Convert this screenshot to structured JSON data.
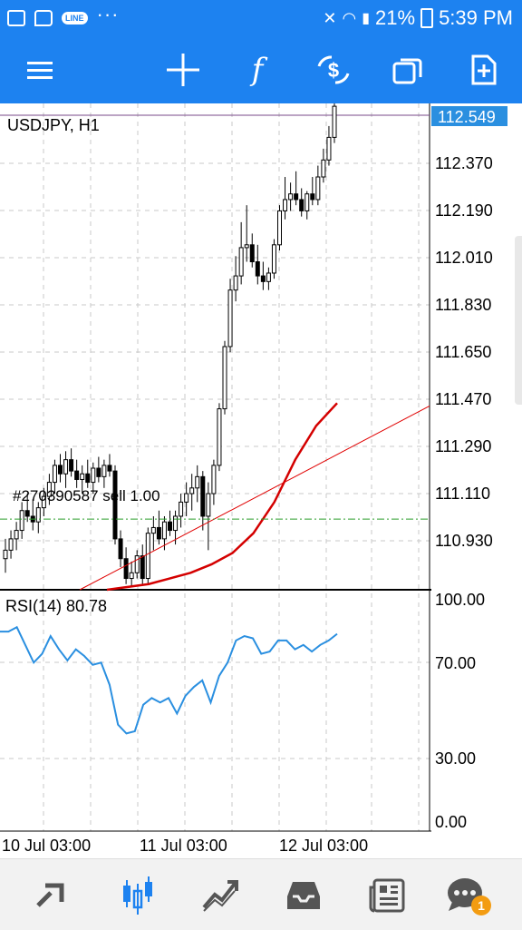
{
  "status_bar": {
    "notification_icons": [
      "gallery-icon",
      "chat-icon",
      "line-app-icon"
    ],
    "line_label": "LINE",
    "more_dots": "···",
    "battery": "21%",
    "time": "5:39 PM"
  },
  "toolbar": {
    "buttons": [
      "menu-icon",
      "crosshair-icon",
      "indicators-icon",
      "symbol-change-icon",
      "windows-icon",
      "new-order-icon"
    ],
    "indicator_glyph": "f",
    "color": "#1d82f0"
  },
  "chart": {
    "symbol_label": "USDJPY, H1",
    "current_price": "112.549",
    "order_label": "#270390587 sell 1.00",
    "rsi_label": "RSI(14) 80.78",
    "price_labels": [
      "112.370",
      "112.190",
      "112.010",
      "111.830",
      "111.650",
      "111.470",
      "111.290",
      "111.110",
      "110.930"
    ],
    "rsi_labels": [
      "100.00",
      "70.00",
      "30.00",
      "0.00"
    ],
    "time_labels": [
      "10 Jul 03:00",
      "11 Jul 03:00",
      "12 Jul 03:00"
    ],
    "colors": {
      "ma": "#d40000",
      "trendline": "#e00000",
      "rsi": "#2a8fe0",
      "order_line": "#2a9d2a",
      "price_tag": "#2a8fe0"
    }
  },
  "chart_data": {
    "type": "candlestick",
    "symbol": "USDJPY",
    "timeframe": "H1",
    "ylim": [
      110.84,
      112.56
    ],
    "last_price": 112.549,
    "order": {
      "ticket": "#270390587",
      "side": "sell",
      "volume": 1.0,
      "price": 111.09
    },
    "candles": [
      [
        110.95,
        111.02,
        110.9,
        110.98
      ],
      [
        110.98,
        111.05,
        110.95,
        111.02
      ],
      [
        111.02,
        111.08,
        110.98,
        111.05
      ],
      [
        111.05,
        111.15,
        111.02,
        111.12
      ],
      [
        111.12,
        111.18,
        111.08,
        111.1
      ],
      [
        111.1,
        111.16,
        111.05,
        111.08
      ],
      [
        111.08,
        111.15,
        111.04,
        111.13
      ],
      [
        111.13,
        111.2,
        111.1,
        111.17
      ],
      [
        111.17,
        111.25,
        111.14,
        111.22
      ],
      [
        111.22,
        111.3,
        111.18,
        111.28
      ],
      [
        111.28,
        111.32,
        111.22,
        111.25
      ],
      [
        111.25,
        111.33,
        111.2,
        111.3
      ],
      [
        111.3,
        111.34,
        111.24,
        111.26
      ],
      [
        111.26,
        111.3,
        111.2,
        111.23
      ],
      [
        111.23,
        111.28,
        111.18,
        111.25
      ],
      [
        111.25,
        111.3,
        111.2,
        111.22
      ],
      [
        111.22,
        111.29,
        111.18,
        111.27
      ],
      [
        111.27,
        111.31,
        111.22,
        111.24
      ],
      [
        111.24,
        111.3,
        111.2,
        111.28
      ],
      [
        111.28,
        111.32,
        111.24,
        111.26
      ],
      [
        111.26,
        111.28,
        111.0,
        111.02
      ],
      [
        111.02,
        111.05,
        110.92,
        110.95
      ],
      [
        110.95,
        110.99,
        110.86,
        110.88
      ],
      [
        110.88,
        110.94,
        110.85,
        110.9
      ],
      [
        110.9,
        110.98,
        110.88,
        110.96
      ],
      [
        110.96,
        111.0,
        110.86,
        110.88
      ],
      [
        110.88,
        111.06,
        110.86,
        111.04
      ],
      [
        111.04,
        111.1,
        110.98,
        111.06
      ],
      [
        111.06,
        111.12,
        111.0,
        111.02
      ],
      [
        111.02,
        111.1,
        110.98,
        111.08
      ],
      [
        111.08,
        111.12,
        111.03,
        111.05
      ],
      [
        111.05,
        111.12,
        111.0,
        111.1
      ],
      [
        111.1,
        111.18,
        111.06,
        111.15
      ],
      [
        111.15,
        111.22,
        111.1,
        111.18
      ],
      [
        111.18,
        111.25,
        111.12,
        111.2
      ],
      [
        111.2,
        111.28,
        111.15,
        111.24
      ],
      [
        111.24,
        111.26,
        111.05,
        111.1
      ],
      [
        111.1,
        111.22,
        110.98,
        111.18
      ],
      [
        111.18,
        111.3,
        111.14,
        111.28
      ],
      [
        111.28,
        111.5,
        111.26,
        111.48
      ],
      [
        111.48,
        111.72,
        111.46,
        111.7
      ],
      [
        111.7,
        111.94,
        111.68,
        111.9
      ],
      [
        111.9,
        112.02,
        111.86,
        111.95
      ],
      [
        111.95,
        112.14,
        111.92,
        112.05
      ],
      [
        112.05,
        112.2,
        112.0,
        112.06
      ],
      [
        112.06,
        112.1,
        111.98,
        112.0
      ],
      [
        112.0,
        112.06,
        111.92,
        111.95
      ],
      [
        111.95,
        112.0,
        111.9,
        111.93
      ],
      [
        111.93,
        111.98,
        111.9,
        111.96
      ],
      [
        111.96,
        112.08,
        111.94,
        112.06
      ],
      [
        112.06,
        112.2,
        112.04,
        112.18
      ],
      [
        112.18,
        112.3,
        112.15,
        112.22
      ],
      [
        112.22,
        112.28,
        112.18,
        112.24
      ],
      [
        112.24,
        112.32,
        112.2,
        112.22
      ],
      [
        112.22,
        112.26,
        112.16,
        112.18
      ],
      [
        112.18,
        112.25,
        112.15,
        112.24
      ],
      [
        112.24,
        112.3,
        112.2,
        112.22
      ],
      [
        112.22,
        112.34,
        112.2,
        112.3
      ],
      [
        112.3,
        112.4,
        112.28,
        112.36
      ],
      [
        112.36,
        112.48,
        112.34,
        112.44
      ],
      [
        112.44,
        112.56,
        112.42,
        112.55
      ]
    ],
    "moving_average": [
      110.84,
      110.85,
      110.86,
      110.88,
      110.9,
      110.93,
      110.97,
      111.04,
      111.15,
      111.3,
      111.42,
      111.5
    ],
    "trendline": {
      "from": [
        110.84
      ],
      "to": [
        111.49
      ]
    },
    "rsi": {
      "name": "RSI(14)",
      "last": 80.78,
      "ylim": [
        0,
        100
      ],
      "values": [
        86,
        86,
        88,
        80,
        72,
        76,
        84,
        78,
        73,
        78,
        75,
        71,
        72,
        62,
        44,
        40,
        41,
        53,
        56,
        54,
        56,
        49,
        57,
        61,
        64,
        54,
        66,
        72,
        82,
        84,
        83,
        76,
        77,
        82,
        82,
        78,
        80,
        77,
        80,
        82,
        85
      ]
    },
    "x_labels": [
      "10 Jul 03:00",
      "11 Jul 03:00",
      "12 Jul 03:00"
    ]
  },
  "bottom_nav": {
    "items": [
      "trade-icon",
      "chart-icon",
      "analytics-icon",
      "history-icon",
      "news-icon",
      "chat-icon"
    ],
    "active": "chart-icon",
    "chat_badge": "1"
  }
}
